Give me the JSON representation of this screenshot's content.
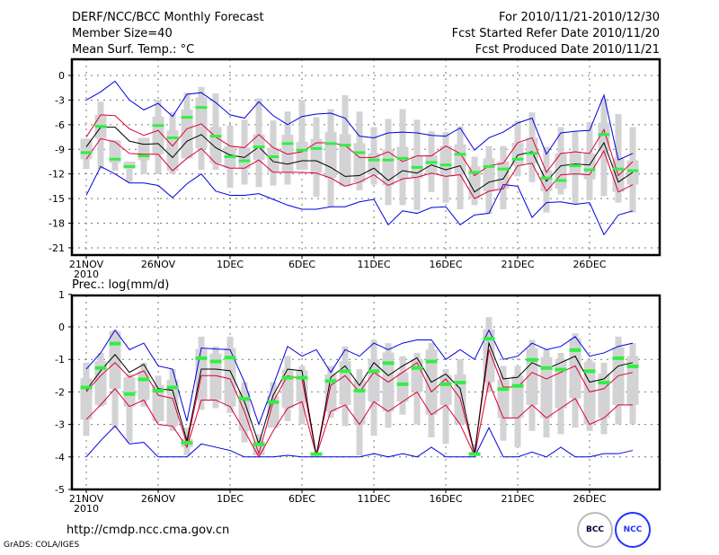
{
  "header": {
    "title": "DERF/NCC/BCC Monthly Forecast",
    "member_size": "Member Size=40",
    "variable": "Mean Surf. Temp.: °C",
    "period": "For 2010/11/21-2010/12/30",
    "started": "Fcst Started Refer Date 2010/11/20",
    "produced": "Fcst Produced Date 2010/11/21"
  },
  "footer": {
    "url": "http://cmdp.ncc.cma.gov.cn",
    "grads": "GrADS: COLA/IGES",
    "logo_left": "BCC",
    "logo_right": "NCC"
  },
  "colors": {
    "minmax": "#0000dd",
    "quantile": "#dd0033",
    "mean": "#000000",
    "box": "#d3d3d6",
    "median": "#33ee44"
  },
  "chart_data": [
    {
      "type": "line",
      "title": "Mean Surf. Temp.: °C",
      "xlabel": "",
      "ylabel": "",
      "ylim": [
        -22,
        2
      ],
      "yticks": [
        0,
        -3,
        -6,
        -9,
        -12,
        -15,
        -18,
        -21
      ],
      "ytick_labels": [
        "0",
        "-3",
        "-6",
        "-9",
        "-12",
        "-15",
        "-18",
        "-21"
      ],
      "xtick_labels": [
        "21NOV",
        "26NOV",
        "1DEC",
        "6DEC",
        "11DEC",
        "16DEC",
        "21DEC",
        "26DEC"
      ],
      "xtick_sublabel": "2010",
      "grid": true,
      "x": [
        0,
        1,
        2,
        3,
        4,
        5,
        6,
        7,
        8,
        9,
        10,
        11,
        12,
        13,
        14,
        15,
        16,
        17,
        18,
        19,
        20,
        21,
        22,
        23,
        24,
        25,
        26,
        27,
        28,
        29,
        30,
        31,
        32,
        33,
        34,
        35,
        36,
        37,
        38
      ],
      "series": [
        {
          "name": "max",
          "values": [
            -3.0,
            -2.0,
            -0.7,
            -3.0,
            -4.2,
            -3.4,
            -5.0,
            -2.3,
            -2.1,
            -3.3,
            -4.8,
            -5.2,
            -3.2,
            -4.9,
            -6.0,
            -5.0,
            -4.7,
            -4.6,
            -5.2,
            -7.4,
            -7.6,
            -7.0,
            -6.9,
            -7.0,
            -7.3,
            -7.4,
            -6.4,
            -9.1,
            -7.6,
            -6.9,
            -5.8,
            -5.2,
            -9.6,
            -7.0,
            -6.8,
            -6.7,
            -2.4,
            -10.3,
            -9.5
          ]
        },
        {
          "name": "q_upper",
          "values": [
            -7.5,
            -4.8,
            -4.9,
            -6.5,
            -7.3,
            -6.7,
            -8.6,
            -6.5,
            -5.9,
            -7.5,
            -8.6,
            -8.8,
            -7.2,
            -8.8,
            -9.6,
            -9.3,
            -8.2,
            -8.2,
            -8.5,
            -10.0,
            -10.0,
            -9.3,
            -10.5,
            -9.8,
            -9.8,
            -8.6,
            -9.5,
            -12.2,
            -11.0,
            -10.7,
            -8.2,
            -7.6,
            -11.8,
            -9.5,
            -9.3,
            -9.5,
            -6.6,
            -12.2,
            -10.5
          ]
        },
        {
          "name": "mean",
          "values": [
            -8.7,
            -6.3,
            -6.3,
            -8.0,
            -8.4,
            -8.3,
            -10.0,
            -8.0,
            -7.2,
            -8.8,
            -9.7,
            -10.0,
            -8.7,
            -10.5,
            -10.8,
            -10.4,
            -10.4,
            -11.2,
            -12.3,
            -12.2,
            -11.3,
            -12.8,
            -11.6,
            -11.9,
            -10.9,
            -11.5,
            -11.0,
            -14.2,
            -13.0,
            -12.6,
            -9.7,
            -9.3,
            -12.9,
            -11.0,
            -10.8,
            -10.9,
            -8.2,
            -13.0,
            -11.8
          ]
        },
        {
          "name": "q_lower",
          "values": [
            -10.2,
            -7.7,
            -8.1,
            -9.5,
            -9.6,
            -9.6,
            -11.6,
            -10.1,
            -8.9,
            -10.7,
            -11.3,
            -11.3,
            -10.3,
            -11.8,
            -11.8,
            -11.8,
            -11.9,
            -12.5,
            -13.5,
            -13.0,
            -12.1,
            -13.4,
            -12.6,
            -12.4,
            -11.9,
            -12.3,
            -12.1,
            -15.0,
            -14.1,
            -13.8,
            -11.0,
            -10.7,
            -14.1,
            -12.1,
            -12.0,
            -12.1,
            -9.2,
            -14.2,
            -13.3
          ]
        },
        {
          "name": "min",
          "values": [
            -14.6,
            -11.1,
            -12.0,
            -13.1,
            -13.1,
            -13.4,
            -14.9,
            -13.2,
            -12.0,
            -14.1,
            -14.6,
            -14.6,
            -14.4,
            -15.1,
            -15.8,
            -16.3,
            -16.3,
            -16.0,
            -16.0,
            -15.4,
            -15.1,
            -18.2,
            -16.5,
            -16.8,
            -16.1,
            -16.0,
            -18.2,
            -17.0,
            -16.8,
            -13.3,
            -13.5,
            -17.3,
            -15.5,
            -15.4,
            -15.7,
            -15.5,
            -19.4,
            -17.0,
            -16.5
          ]
        },
        {
          "name": "median",
          "values": [
            -9.4,
            -6.2,
            -10.2,
            -11.1,
            -9.8,
            -6.1,
            -7.6,
            -5.1,
            -3.9,
            -7.4,
            -9.9,
            -10.4,
            -8.7,
            -9.9,
            -8.3,
            -9.1,
            -8.9,
            -8.3,
            -8.5,
            -9.4,
            -10.3,
            -10.3,
            -10.1,
            -11.2,
            -10.6,
            -10.9,
            -9.6,
            -11.8,
            -11.1,
            -11.4,
            -10.2,
            -9.5,
            -12.5,
            -12.8,
            -11.0,
            -11.5,
            -7.2,
            -11.4,
            -11.6
          ]
        }
      ],
      "boxes": {
        "outer_high": [
          -7.7,
          -3.2,
          -7.9,
          -10.5,
          -7.6,
          -3.0,
          -4.5,
          -2.1,
          -1.4,
          -2.2,
          -6.1,
          -5.4,
          -2.8,
          -5.5,
          -4.4,
          -3.0,
          -5.1,
          -4.1,
          -2.4,
          -4.4,
          -6.3,
          -5.3,
          -4.1,
          -5.4,
          -6.8,
          -6.9,
          -6.2,
          -9.9,
          -8.6,
          -8.6,
          -5.5,
          -4.5,
          -8.7,
          -6.3,
          -6.8,
          -5.7,
          -2.8,
          -4.7,
          -6.3
        ],
        "outer_low": [
          -11.4,
          -11.4,
          -11.6,
          -13.0,
          -12.0,
          -12.0,
          -12.0,
          -10.1,
          -11.5,
          -11.5,
          -13.7,
          -13.3,
          -13.6,
          -13.4,
          -13.3,
          -11.5,
          -14.8,
          -16.0,
          -13.5,
          -14.0,
          -13.3,
          -15.8,
          -15.8,
          -16.4,
          -14.2,
          -15.5,
          -16.3,
          -15.8,
          -16.9,
          -16.3,
          -12.3,
          -13.0,
          -16.7,
          -14.5,
          -15.7,
          -15.2,
          -14.7,
          -15.5,
          -16.7
        ]
      }
    },
    {
      "type": "line",
      "title": "Prec.: log(mm/d)",
      "xlabel": "",
      "ylabel": "",
      "ylim": [
        -5,
        1
      ],
      "yticks": [
        1,
        0,
        -1,
        -2,
        -3,
        -4,
        -5
      ],
      "ytick_labels": [
        "1",
        "0",
        "-1",
        "-2",
        "-3",
        "-4",
        "-5"
      ],
      "xtick_labels": [
        "21NOV",
        "26NOV",
        "1DEC",
        "6DEC",
        "11DEC",
        "16DEC",
        "21DEC",
        "26DEC"
      ],
      "xtick_sublabel": "2010",
      "grid": true,
      "x": [
        0,
        1,
        2,
        3,
        4,
        5,
        6,
        7,
        8,
        9,
        10,
        11,
        12,
        13,
        14,
        15,
        16,
        17,
        18,
        19,
        20,
        21,
        22,
        23,
        24,
        25,
        26,
        27,
        28,
        29,
        30,
        31,
        32,
        33,
        34,
        35,
        36,
        37,
        38
      ],
      "series": [
        {
          "name": "max",
          "values": [
            -1.3,
            -0.8,
            -0.1,
            -0.7,
            -0.5,
            -1.2,
            -1.3,
            -2.9,
            -0.65,
            -0.68,
            -0.7,
            -1.7,
            -3.0,
            -1.8,
            -0.6,
            -0.9,
            -0.7,
            -1.4,
            -0.7,
            -0.9,
            -0.5,
            -0.7,
            -0.5,
            -0.4,
            -0.4,
            -1.0,
            -0.7,
            -1.0,
            -0.1,
            -1.0,
            -0.9,
            -0.5,
            -0.7,
            -0.6,
            -0.3,
            -0.9,
            -0.8,
            -0.6,
            -0.5
          ]
        },
        {
          "name": "mean",
          "values": [
            -1.95,
            -1.35,
            -0.85,
            -1.4,
            -1.15,
            -1.9,
            -1.95,
            -3.5,
            -1.3,
            -1.3,
            -1.35,
            -2.3,
            -3.6,
            -2.1,
            -1.3,
            -1.35,
            -3.95,
            -1.55,
            -1.2,
            -1.8,
            -1.1,
            -1.5,
            -1.2,
            -0.95,
            -1.7,
            -1.45,
            -1.9,
            -3.9,
            -0.5,
            -1.6,
            -1.55,
            -1.1,
            -1.3,
            -1.1,
            -0.9,
            -1.7,
            -1.6,
            -1.2,
            -1.1
          ]
        },
        {
          "name": "q_upper",
          "values": [
            -2.0,
            -1.5,
            -1.1,
            -1.55,
            -1.35,
            -2.1,
            -2.2,
            -3.6,
            -1.5,
            -1.5,
            -1.6,
            -2.6,
            -3.9,
            -2.3,
            -1.5,
            -1.6,
            -3.95,
            -1.8,
            -1.5,
            -2.0,
            -1.4,
            -1.7,
            -1.4,
            -1.1,
            -2.0,
            -1.6,
            -2.2,
            -3.9,
            -0.7,
            -1.85,
            -1.85,
            -1.4,
            -1.6,
            -1.4,
            -1.2,
            -2.0,
            -1.9,
            -1.5,
            -1.4
          ]
        },
        {
          "name": "q_lower",
          "values": [
            -2.85,
            -2.4,
            -1.9,
            -2.45,
            -2.25,
            -3.0,
            -3.05,
            -3.7,
            -2.25,
            -2.25,
            -2.45,
            -3.2,
            -4.0,
            -3.2,
            -2.5,
            -2.3,
            -3.95,
            -2.6,
            -2.4,
            -3.0,
            -2.3,
            -2.6,
            -2.3,
            -2.0,
            -2.7,
            -2.4,
            -3.0,
            -3.95,
            -1.7,
            -2.8,
            -2.8,
            -2.4,
            -2.8,
            -2.5,
            -2.2,
            -3.0,
            -2.8,
            -2.4,
            -2.4
          ]
        },
        {
          "name": "min",
          "values": [
            -4.0,
            -3.5,
            -3.05,
            -3.6,
            -3.55,
            -4.0,
            -4.0,
            -4.0,
            -3.6,
            -3.7,
            -3.8,
            -4.0,
            -4.0,
            -4.0,
            -3.95,
            -4.0,
            -4.0,
            -4.0,
            -4.0,
            -4.0,
            -3.9,
            -4.0,
            -3.9,
            -4.0,
            -3.7,
            -4.0,
            -4.0,
            -4.0,
            -3.1,
            -4.0,
            -4.0,
            -3.85,
            -4.0,
            -3.7,
            -4.0,
            -4.0,
            -3.9,
            -3.9,
            -3.8
          ]
        },
        {
          "name": "median",
          "values": [
            -1.85,
            -1.25,
            -0.5,
            -2.05,
            -1.6,
            -1.95,
            -1.85,
            -3.55,
            -0.95,
            -1.05,
            -0.93,
            -2.2,
            -3.6,
            -2.3,
            -1.55,
            -1.55,
            -3.9,
            -1.65,
            -1.35,
            -1.95,
            -1.35,
            -1.1,
            -1.75,
            -1.25,
            -1.05,
            -1.75,
            -1.7,
            -3.9,
            -0.35,
            -1.9,
            -1.8,
            -1.0,
            -1.25,
            -1.3,
            -0.7,
            -1.35,
            -1.7,
            -0.95,
            -1.2
          ]
        }
      ],
      "boxes": {
        "outer_high": [
          -1.1,
          -0.8,
          -0.1,
          -1.45,
          -1.1,
          -1.5,
          -1.3,
          -3.1,
          -0.3,
          -0.6,
          -0.3,
          -1.7,
          -3.3,
          -1.7,
          -0.9,
          -1.2,
          -3.9,
          -1.2,
          -0.6,
          -1.3,
          -0.4,
          -0.5,
          -0.9,
          -0.8,
          -0.5,
          -1.3,
          -1.0,
          -3.6,
          0.3,
          -1.2,
          -1.2,
          -0.4,
          -0.7,
          -0.8,
          -0.2,
          -1.0,
          -1.1,
          -0.3,
          -0.5
        ],
        "outer_low": [
          -3.35,
          -2.45,
          -3.1,
          -3.55,
          -2.45,
          -2.9,
          -3.2,
          -3.95,
          -2.55,
          -2.5,
          -2.65,
          -3.55,
          -3.95,
          -3.1,
          -2.9,
          -3.0,
          -3.95,
          -2.8,
          -3.05,
          -3.95,
          -3.35,
          -3.1,
          -2.7,
          -3.0,
          -3.4,
          -3.6,
          -3.0,
          -3.95,
          -2.0,
          -3.5,
          -3.7,
          -3.2,
          -3.4,
          -3.3,
          -3.1,
          -3.2,
          -3.3,
          -3.0,
          -3.0
        ]
      }
    }
  ]
}
